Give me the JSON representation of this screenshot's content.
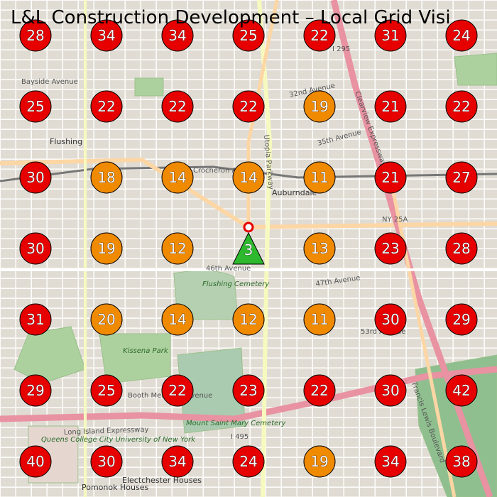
{
  "header": {
    "title": "L&L Construction Development – Local Grid Visi"
  },
  "map_labels": [
    "Flushing",
    "Auburndale",
    "Flushing Cemetery",
    "Kissena Park",
    "Mount Saint Mary Cemetery",
    "Long Island Expressway",
    "Utopia Parkway",
    "Francis Lewis Boulevard",
    "Clearview Expressway",
    "NY 25A",
    "I 295",
    "I 495",
    "46th Avenue",
    "47th Avenue",
    "53rd Avenue",
    "35th Avenue",
    "32nd Avenue",
    "Bayside Avenue",
    "Crocheron Avenue",
    "Booth Memorial Avenue",
    "Queens College City University of New York",
    "Pomonok Houses",
    "Electchester Houses"
  ],
  "grid": {
    "rows": [
      [
        28,
        34,
        34,
        25,
        22,
        31,
        24
      ],
      [
        25,
        22,
        22,
        22,
        19,
        21,
        22
      ],
      [
        30,
        18,
        14,
        14,
        11,
        21,
        27
      ],
      [
        30,
        19,
        12,
        null,
        13,
        23,
        28
      ],
      [
        31,
        20,
        14,
        12,
        11,
        30,
        29
      ],
      [
        29,
        25,
        22,
        23,
        22,
        30,
        42
      ],
      [
        40,
        30,
        34,
        24,
        19,
        34,
        38
      ]
    ],
    "colors": [
      [
        "#e60000",
        "#e60000",
        "#e60000",
        "#e60000",
        "#e60000",
        "#e60000",
        "#e60000"
      ],
      [
        "#e60000",
        "#e60000",
        "#e60000",
        "#e60000",
        "#f08a00",
        "#e60000",
        "#e60000"
      ],
      [
        "#e60000",
        "#f08a00",
        "#f08a00",
        "#f08a00",
        "#f08a00",
        "#e60000",
        "#e60000"
      ],
      [
        "#e60000",
        "#f08a00",
        "#f08a00",
        null,
        "#f08a00",
        "#e60000",
        "#e60000"
      ],
      [
        "#e60000",
        "#f08a00",
        "#f08a00",
        "#f08a00",
        "#f08a00",
        "#e60000",
        "#e60000"
      ],
      [
        "#e60000",
        "#e60000",
        "#e60000",
        "#e60000",
        "#e60000",
        "#e60000",
        "#e60000"
      ],
      [
        "#e60000",
        "#e60000",
        "#e60000",
        "#e60000",
        "#f08a00",
        "#e60000",
        "#e60000"
      ]
    ],
    "center": {
      "value": 3,
      "color": "#2db82d"
    }
  }
}
